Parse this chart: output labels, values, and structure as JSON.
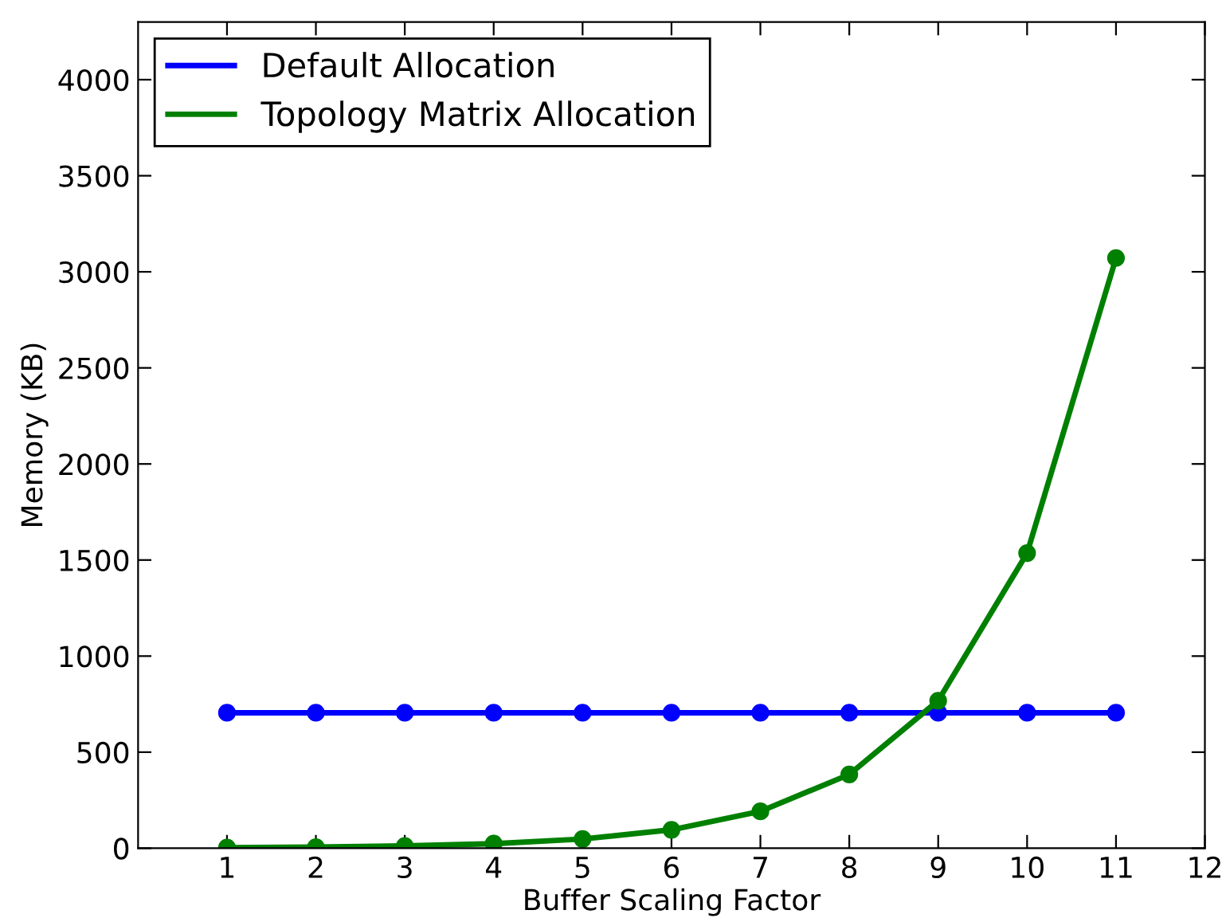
{
  "chart_data": {
    "type": "line",
    "xlabel": "Buffer Scaling Factor",
    "ylabel": "Memory (KB)",
    "x": [
      1,
      2,
      3,
      4,
      5,
      6,
      7,
      8,
      9,
      10,
      11
    ],
    "series": [
      {
        "name": "Default Allocation",
        "color": "#0000ff",
        "values": [
          705,
          705,
          705,
          705,
          705,
          705,
          705,
          705,
          705,
          705,
          705
        ]
      },
      {
        "name": "Topology Matrix Allocation",
        "color": "#008000",
        "values": [
          3,
          6,
          12,
          24,
          48,
          96,
          192,
          384,
          768,
          1536,
          3072
        ]
      }
    ],
    "xlim": [
      0,
      12
    ],
    "xticks": [
      1,
      2,
      3,
      4,
      5,
      6,
      7,
      8,
      9,
      10,
      11,
      12
    ],
    "ylim": [
      0,
      4300
    ],
    "yticks": [
      0,
      500,
      1000,
      1500,
      2000,
      2500,
      3000,
      3500,
      4000
    ],
    "grid": false,
    "legend": "top left",
    "marker": "circle",
    "line_style": "solid"
  }
}
